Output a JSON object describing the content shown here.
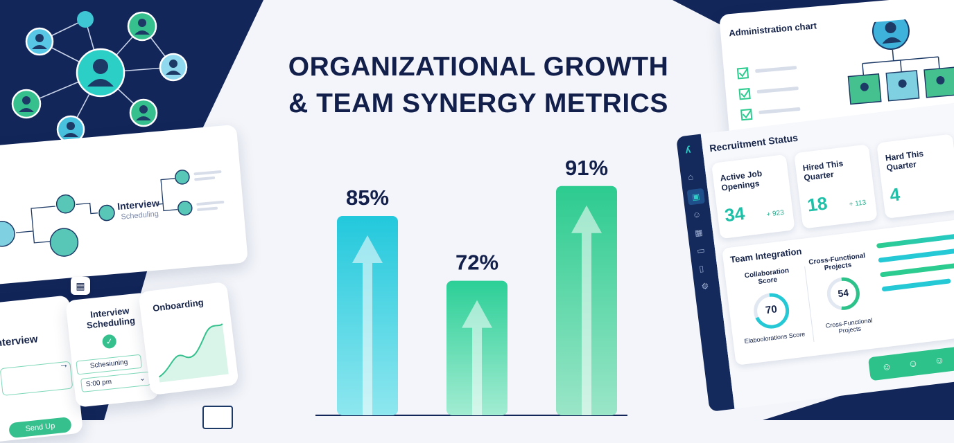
{
  "title": {
    "line1": "ORGANIZATIONAL GROWTH",
    "line2": "& TEAM SYNERGY METRICS"
  },
  "colors": {
    "navy": "#13265a",
    "teal": "#25c9d6",
    "green": "#2cc28a",
    "text": "#121f4b"
  },
  "flow": {
    "interview_label": "Interview",
    "interview_sub": "Scheduling"
  },
  "onboarding_panel": {
    "interview_label": "nterview",
    "send_up_button": "Send Up",
    "scheduling_title": "Interview\nScheduling",
    "scheduling_field": "Schesiuning",
    "time_select": "S:00 pm",
    "onboarding_title": "Onboarding"
  },
  "chart_data": {
    "type": "bar",
    "categories": [
      "",
      "",
      ""
    ],
    "values": [
      85,
      72,
      91
    ],
    "value_labels": [
      "85%",
      "72%",
      "91%"
    ],
    "ylim": [
      0,
      100
    ],
    "colors": [
      "#27cbdc",
      "#2ccf97",
      "#2ccb8f"
    ]
  },
  "admin": {
    "title": "Administration chart"
  },
  "dashboard": {
    "recruitment_title": "Recruitment Status",
    "tiles": [
      {
        "label": "Active Job Openings",
        "value": "34",
        "delta": "+ 923"
      },
      {
        "label": "Hired This Quarter",
        "value": "18",
        "delta": "+ 113"
      },
      {
        "label": "Hard This Quarter",
        "value": "4",
        "delta": ""
      }
    ],
    "team_title": "Team Integration",
    "collab_title": "Collaboration Score",
    "collab_value": "70",
    "collab_sub": "Elaboolorations Score",
    "cross_title": "Cross-Functional Projects",
    "cross_value": "54",
    "cross_sub": "Cross-Functional Projects",
    "sidebar_icons": [
      "logo-icon",
      "home-icon",
      "dashboard-icon",
      "users-icon",
      "calendar-icon",
      "folder-icon",
      "file-icon",
      "settings-icon"
    ]
  }
}
